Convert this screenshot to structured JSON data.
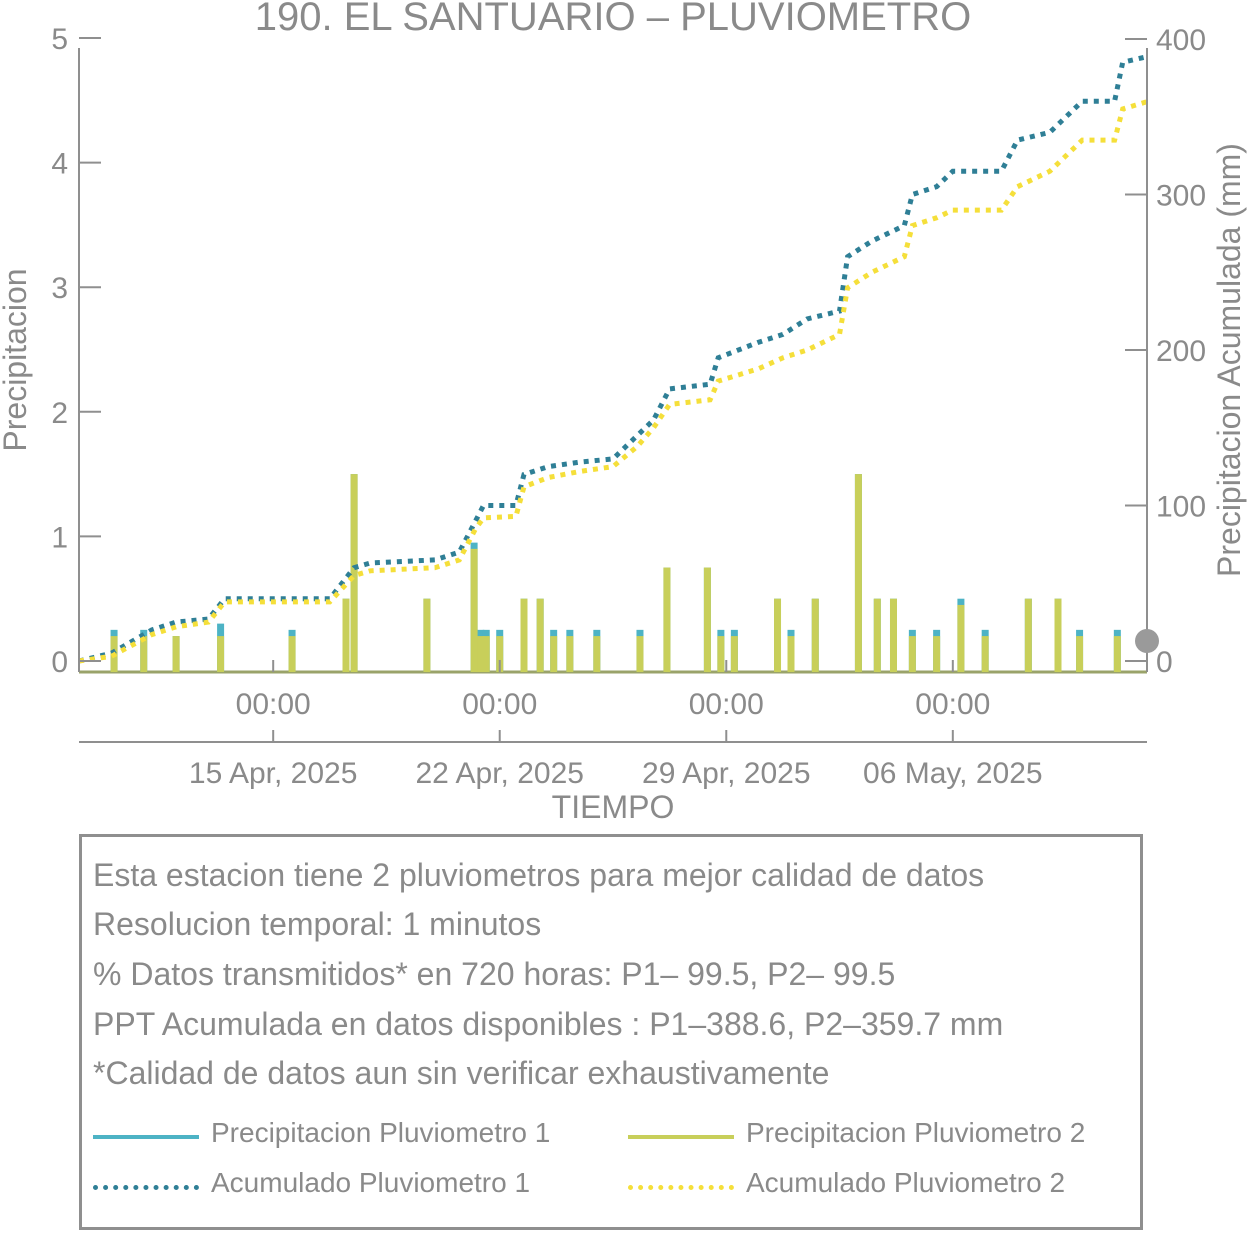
{
  "chart_data": {
    "type": "bar",
    "title": "190. EL SANTUARIO – PLUVIOMETRO",
    "xlabel": "TIEMPO",
    "ylabel": "Precipitacion",
    "ylabel_right": "Precipitacion Acumulada (mm)",
    "x_range": [
      "2025-04-09 00:00",
      "2025-05-12 00:00"
    ],
    "ylim": [
      0,
      5
    ],
    "ylim_right": [
      0,
      400
    ],
    "yticks": [
      "0",
      "1",
      "2",
      "3",
      "4",
      "5"
    ],
    "yticks_right": [
      "0",
      "100",
      "200",
      "300",
      "400"
    ],
    "x_tick_dates": [
      "2025-04-15",
      "2025-04-22",
      "2025-04-29",
      "2025-05-06"
    ],
    "x_tick_time_labels": [
      "00:00",
      "00:00",
      "00:00",
      "00:00"
    ],
    "x_tick_date_labels": [
      "15 Apr, 2025",
      "22 Apr, 2025",
      "29 Apr, 2025",
      "06 May, 2025"
    ],
    "grid": false,
    "series": [
      {
        "name": "Precipitacion Pluviometro 1",
        "kind": "bar",
        "color": "#4db3c5",
        "points": [
          [
            "2025-04-10 02:00",
            0.25
          ],
          [
            "2025-04-11 00:00",
            0.25
          ],
          [
            "2025-04-12 00:00",
            0.2
          ],
          [
            "2025-04-13 09:00",
            0.3
          ],
          [
            "2025-04-15 14:00",
            0.25
          ],
          [
            "2025-04-17 06:00",
            0.5
          ],
          [
            "2025-04-17 12:00",
            1.5
          ],
          [
            "2025-04-19 18:00",
            0.5
          ],
          [
            "2025-04-21 05:00",
            0.95
          ],
          [
            "2025-04-21 10:00",
            0.25
          ],
          [
            "2025-04-21 14:00",
            0.25
          ],
          [
            "2025-04-22 00:00",
            0.25
          ],
          [
            "2025-04-22 18:00",
            0.5
          ],
          [
            "2025-04-23 06:00",
            0.5
          ],
          [
            "2025-04-23 16:00",
            0.25
          ],
          [
            "2025-04-24 04:00",
            0.25
          ],
          [
            "2025-04-25 00:00",
            0.25
          ],
          [
            "2025-04-26 08:00",
            0.25
          ],
          [
            "2025-04-27 04:00",
            0.75
          ],
          [
            "2025-04-28 10:00",
            0.75
          ],
          [
            "2025-04-28 20:00",
            0.25
          ],
          [
            "2025-04-29 06:00",
            0.25
          ],
          [
            "2025-04-30 14:00",
            0.5
          ],
          [
            "2025-05-01 00:00",
            0.25
          ],
          [
            "2025-05-01 18:00",
            0.5
          ],
          [
            "2025-05-03 02:00",
            1.5
          ],
          [
            "2025-05-03 16:00",
            0.5
          ],
          [
            "2025-05-04 04:00",
            0.5
          ],
          [
            "2025-05-04 18:00",
            0.25
          ],
          [
            "2025-05-05 12:00",
            0.25
          ],
          [
            "2025-05-06 06:00",
            0.5
          ],
          [
            "2025-05-07 00:00",
            0.25
          ],
          [
            "2025-05-08 08:00",
            0.5
          ],
          [
            "2025-05-09 06:00",
            0.5
          ],
          [
            "2025-05-09 22:00",
            0.25
          ],
          [
            "2025-05-11 02:00",
            0.25
          ]
        ]
      },
      {
        "name": "Precipitacion Pluviometro 2",
        "kind": "bar",
        "color": "#c8cf5a",
        "points": [
          [
            "2025-04-10 02:00",
            0.2
          ],
          [
            "2025-04-11 00:00",
            0.2
          ],
          [
            "2025-04-12 00:00",
            0.2
          ],
          [
            "2025-04-13 09:00",
            0.2
          ],
          [
            "2025-04-15 14:00",
            0.2
          ],
          [
            "2025-04-17 06:00",
            0.5
          ],
          [
            "2025-04-17 12:00",
            1.5
          ],
          [
            "2025-04-19 18:00",
            0.5
          ],
          [
            "2025-04-21 05:00",
            0.9
          ],
          [
            "2025-04-21 10:00",
            0.2
          ],
          [
            "2025-04-21 14:00",
            0.2
          ],
          [
            "2025-04-22 00:00",
            0.2
          ],
          [
            "2025-04-22 18:00",
            0.5
          ],
          [
            "2025-04-23 06:00",
            0.5
          ],
          [
            "2025-04-23 16:00",
            0.2
          ],
          [
            "2025-04-24 04:00",
            0.2
          ],
          [
            "2025-04-25 00:00",
            0.2
          ],
          [
            "2025-04-26 08:00",
            0.2
          ],
          [
            "2025-04-27 04:00",
            0.75
          ],
          [
            "2025-04-28 10:00",
            0.75
          ],
          [
            "2025-04-28 20:00",
            0.2
          ],
          [
            "2025-04-29 06:00",
            0.2
          ],
          [
            "2025-04-30 14:00",
            0.5
          ],
          [
            "2025-05-01 00:00",
            0.2
          ],
          [
            "2025-05-01 18:00",
            0.5
          ],
          [
            "2025-05-03 02:00",
            1.5
          ],
          [
            "2025-05-03 16:00",
            0.5
          ],
          [
            "2025-05-04 04:00",
            0.5
          ],
          [
            "2025-05-04 18:00",
            0.2
          ],
          [
            "2025-05-05 12:00",
            0.2
          ],
          [
            "2025-05-06 06:00",
            0.45
          ],
          [
            "2025-05-07 00:00",
            0.2
          ],
          [
            "2025-05-08 08:00",
            0.5
          ],
          [
            "2025-05-09 06:00",
            0.5
          ],
          [
            "2025-05-09 22:00",
            0.2
          ],
          [
            "2025-05-11 02:00",
            0.2
          ]
        ]
      },
      {
        "name": "Acumulado Pluviometro 1",
        "kind": "line",
        "axis": "right",
        "color": "#2f7f96",
        "points": [
          [
            "2025-04-09 00:00",
            0
          ],
          [
            "2025-04-10 00:00",
            5
          ],
          [
            "2025-04-11 06:00",
            20
          ],
          [
            "2025-04-12 00:00",
            25
          ],
          [
            "2025-04-13 00:00",
            27
          ],
          [
            "2025-04-13 12:00",
            40
          ],
          [
            "2025-04-15 00:00",
            40
          ],
          [
            "2025-04-16 18:00",
            40
          ],
          [
            "2025-04-17 12:00",
            60
          ],
          [
            "2025-04-18 00:00",
            63
          ],
          [
            "2025-04-20 00:00",
            65
          ],
          [
            "2025-04-20 18:00",
            70
          ],
          [
            "2025-04-21 06:00",
            90
          ],
          [
            "2025-04-21 12:00",
            100
          ],
          [
            "2025-04-22 12:00",
            100
          ],
          [
            "2025-04-22 18:00",
            120
          ],
          [
            "2025-04-23 12:00",
            125
          ],
          [
            "2025-04-24 12:00",
            128
          ],
          [
            "2025-04-25 12:00",
            130
          ],
          [
            "2025-04-26 06:00",
            145
          ],
          [
            "2025-04-26 18:00",
            155
          ],
          [
            "2025-04-27 06:00",
            175
          ],
          [
            "2025-04-28 12:00",
            178
          ],
          [
            "2025-04-28 18:00",
            195
          ],
          [
            "2025-04-30 00:00",
            205
          ],
          [
            "2025-04-30 18:00",
            210
          ],
          [
            "2025-05-01 12:00",
            220
          ],
          [
            "2025-05-02 12:00",
            225
          ],
          [
            "2025-05-02 18:00",
            260
          ],
          [
            "2025-05-03 12:00",
            270
          ],
          [
            "2025-05-04 12:00",
            280
          ],
          [
            "2025-05-04 18:00",
            300
          ],
          [
            "2025-05-05 12:00",
            305
          ],
          [
            "2025-05-06 00:00",
            315
          ],
          [
            "2025-05-07 12:00",
            315
          ],
          [
            "2025-05-08 00:00",
            335
          ],
          [
            "2025-05-09 00:00",
            340
          ],
          [
            "2025-05-10 00:00",
            360
          ],
          [
            "2025-05-11 00:00",
            360
          ],
          [
            "2025-05-11 06:00",
            385
          ],
          [
            "2025-05-12 00:00",
            388.6
          ]
        ]
      },
      {
        "name": "Acumulado Pluviometro 2",
        "kind": "line",
        "axis": "right",
        "color": "#f5df3a",
        "points": [
          [
            "2025-04-09 00:00",
            0
          ],
          [
            "2025-04-10 00:00",
            3
          ],
          [
            "2025-04-11 06:00",
            17
          ],
          [
            "2025-04-12 00:00",
            22
          ],
          [
            "2025-04-13 00:00",
            25
          ],
          [
            "2025-04-13 12:00",
            38
          ],
          [
            "2025-04-15 00:00",
            38
          ],
          [
            "2025-04-16 18:00",
            38
          ],
          [
            "2025-04-17 12:00",
            55
          ],
          [
            "2025-04-18 00:00",
            58
          ],
          [
            "2025-04-20 00:00",
            60
          ],
          [
            "2025-04-20 18:00",
            65
          ],
          [
            "2025-04-21 06:00",
            85
          ],
          [
            "2025-04-21 12:00",
            92
          ],
          [
            "2025-04-22 12:00",
            93
          ],
          [
            "2025-04-22 18:00",
            112
          ],
          [
            "2025-04-23 12:00",
            118
          ],
          [
            "2025-04-24 12:00",
            122
          ],
          [
            "2025-04-25 12:00",
            125
          ],
          [
            "2025-04-26 06:00",
            138
          ],
          [
            "2025-04-26 18:00",
            150
          ],
          [
            "2025-04-27 06:00",
            165
          ],
          [
            "2025-04-28 12:00",
            168
          ],
          [
            "2025-04-28 18:00",
            180
          ],
          [
            "2025-04-30 00:00",
            188
          ],
          [
            "2025-04-30 18:00",
            195
          ],
          [
            "2025-05-01 12:00",
            200
          ],
          [
            "2025-05-02 12:00",
            210
          ],
          [
            "2025-05-02 18:00",
            240
          ],
          [
            "2025-05-03 12:00",
            250
          ],
          [
            "2025-05-04 12:00",
            260
          ],
          [
            "2025-05-04 18:00",
            280
          ],
          [
            "2025-05-05 12:00",
            285
          ],
          [
            "2025-05-06 00:00",
            290
          ],
          [
            "2025-05-07 12:00",
            290
          ],
          [
            "2025-05-08 00:00",
            305
          ],
          [
            "2025-05-09 00:00",
            315
          ],
          [
            "2025-05-10 00:00",
            335
          ],
          [
            "2025-05-11 00:00",
            335
          ],
          [
            "2025-05-11 06:00",
            355
          ],
          [
            "2025-05-12 00:00",
            359.7
          ]
        ]
      }
    ]
  },
  "info": {
    "line1": "Esta estacion tiene 2 pluviometros para mejor calidad de datos",
    "line2": "Resolucion temporal: 1 minutos",
    "line3": "% Datos transmitidos* en 720 horas: P1– 99.5, P2– 99.5",
    "line4": "PPT Acumulada en datos disponibles : P1–388.6, P2–359.7 mm",
    "line5": "*Calidad de datos aun sin verificar exhaustivamente"
  },
  "legend": {
    "items": [
      {
        "label": "Precipitacion Pluviometro 1",
        "color": "#4db3c5",
        "style": "solid"
      },
      {
        "label": "Precipitacion Pluviometro 2",
        "color": "#c8cf5a",
        "style": "solid"
      },
      {
        "label": "Acumulado Pluviometro 1",
        "color": "#2f7f96",
        "style": "dotted"
      },
      {
        "label": "Acumulado Pluviometro 2",
        "color": "#f5df3a",
        "style": "dotted"
      }
    ]
  },
  "colors": {
    "axis": "#8f8f8f",
    "text": "#8a8a8a",
    "marker": "#9a9a9a"
  }
}
